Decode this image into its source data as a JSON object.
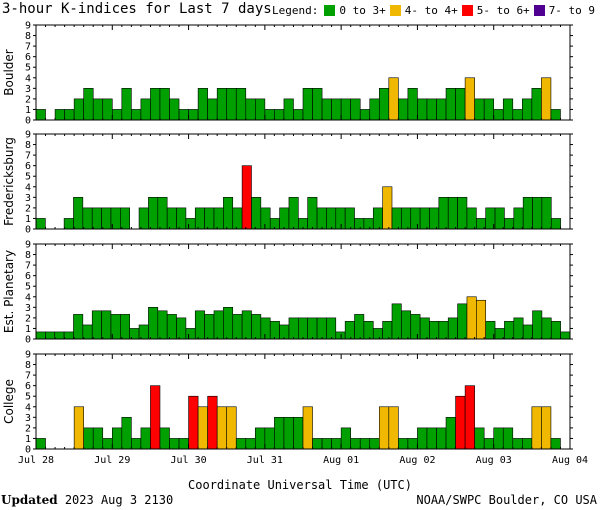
{
  "title": "3-hour K-indices for Last 7 days",
  "legend": {
    "label": "Legend:",
    "items": [
      {
        "label": "0 to 3+",
        "color": "#00a000"
      },
      {
        "label": "4- to 4+",
        "color": "#f0b800"
      },
      {
        "label": "5- to 6+",
        "color": "#ff0000"
      },
      {
        "label": "7- to 9",
        "color": "#500090"
      }
    ]
  },
  "xlabel": "Coordinate Universal Time (UTC)",
  "footer": {
    "updated_label": "Updated",
    "updated_value": "2023 Aug  3 2130",
    "source": "NOAA/SWPC Boulder, CO USA"
  },
  "chart_data": {
    "type": "bar",
    "x_ticks": [
      "Jul 28",
      "Jul 29",
      "Jul 30",
      "Jul 31",
      "Aug 01",
      "Aug 02",
      "Aug 03",
      "Aug 04"
    ],
    "ylim": [
      0,
      9
    ],
    "y_ticks": [
      "0",
      "1",
      "2",
      "3",
      "4",
      "5",
      "6",
      "7",
      "8",
      "9"
    ],
    "color_thresholds": {
      "green_max": 3,
      "yellow_max": 4,
      "red_max": 6
    },
    "panels": [
      {
        "ylabel": "Boulder",
        "values": [
          1,
          0,
          1,
          1,
          2,
          3,
          2,
          2,
          1,
          3,
          1,
          2,
          3,
          3,
          2,
          1,
          1,
          3,
          2,
          3,
          3,
          3,
          2,
          2,
          1,
          1,
          2,
          1,
          3,
          3,
          2,
          2,
          2,
          2,
          1,
          2,
          3,
          4,
          2,
          3,
          2,
          2,
          2,
          3,
          3,
          4,
          2,
          2,
          1,
          2,
          1,
          2,
          3,
          4,
          1,
          0
        ]
      },
      {
        "ylabel": "Fredericksburg",
        "values": [
          1,
          0,
          0,
          1,
          3,
          2,
          2,
          2,
          2,
          2,
          0,
          2,
          3,
          3,
          2,
          2,
          1,
          2,
          2,
          2,
          3,
          2,
          6,
          3,
          2,
          1,
          2,
          3,
          1,
          3,
          2,
          2,
          2,
          2,
          1,
          1,
          2,
          4,
          2,
          2,
          2,
          2,
          2,
          3,
          3,
          3,
          2,
          1,
          2,
          2,
          1,
          2,
          3,
          3,
          3,
          1,
          0
        ]
      },
      {
        "ylabel": "Est. Planetary",
        "values": [
          0.67,
          0.67,
          0.67,
          0.67,
          2.33,
          1.33,
          2.67,
          2.67,
          2.33,
          2.33,
          1,
          1.33,
          3,
          2.67,
          2.33,
          2,
          1,
          2.67,
          2.33,
          2.67,
          3,
          2.33,
          2.67,
          2.33,
          2,
          1.67,
          1.33,
          2,
          2,
          2,
          2,
          2,
          0.67,
          1.67,
          2.33,
          1.67,
          1,
          1.67,
          3.33,
          2.67,
          2.33,
          2,
          1.67,
          1.67,
          2,
          3.33,
          4,
          3.67,
          1.67,
          1,
          1.67,
          2,
          1.33,
          2.67,
          2,
          1.67,
          0.67
        ]
      },
      {
        "ylabel": "College",
        "values": [
          1,
          0,
          0,
          0,
          4,
          2,
          2,
          1,
          2,
          3,
          1,
          2,
          6,
          2,
          1,
          1,
          5,
          4,
          5,
          4,
          4,
          1,
          1,
          2,
          2,
          3,
          3,
          3,
          4,
          1,
          1,
          1,
          2,
          1,
          1,
          1,
          4,
          4,
          1,
          1,
          2,
          2,
          2,
          3,
          5,
          6,
          2,
          1,
          2,
          2,
          1,
          1,
          4,
          4,
          1,
          0
        ]
      }
    ]
  }
}
